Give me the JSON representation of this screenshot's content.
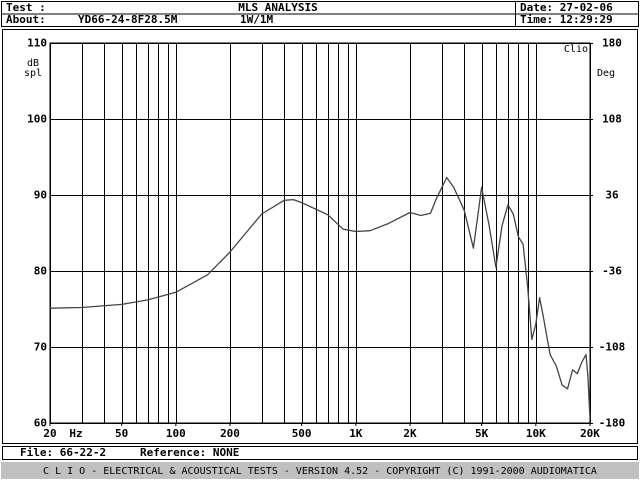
{
  "header": {
    "test_label": "Test :",
    "title": "MLS ANALYSIS",
    "date": "Date: 27-02-06",
    "about_label": "About:",
    "about": "YD66-24-8F28.5M",
    "level": "1W/1M",
    "time": "Time: 12:29:29"
  },
  "footer": {
    "file": "File: 66-22-2",
    "reference": "Reference: NONE",
    "banner": "C L I O  -  ELECTRICAL & ACOUSTICAL TESTS  -  VERSION 4.52  -  COPYRIGHT (C) 1991-2000 AUDIOMATICA"
  },
  "chart_data": {
    "type": "line",
    "color": "#444444",
    "log_x": true,
    "grid": true,
    "y_label": [
      "dB",
      "spl"
    ],
    "y2_label": "Deg",
    "corner_label": "Clio",
    "x_unit": "Hz",
    "xlim": [
      20,
      20000
    ],
    "xticks": [
      20,
      50,
      100,
      200,
      500,
      {
        "value": 1000,
        "label": "1K"
      },
      {
        "value": 2000,
        "label": "2K"
      },
      {
        "value": 5000,
        "label": "5K"
      },
      {
        "value": 10000,
        "label": "10K"
      },
      {
        "value": 20000,
        "label": "20K"
      }
    ],
    "xgrid": [
      20,
      30,
      40,
      50,
      60,
      70,
      80,
      90,
      100,
      200,
      300,
      400,
      500,
      600,
      700,
      800,
      900,
      1000,
      2000,
      3000,
      4000,
      5000,
      6000,
      7000,
      8000,
      9000,
      10000,
      20000
    ],
    "ylim": [
      60,
      110
    ],
    "yticks": [
      60,
      70,
      80,
      90,
      100,
      110
    ],
    "y2lim": [
      -180,
      180
    ],
    "y2ticks": [
      -180,
      -108,
      -36,
      36,
      108,
      180
    ],
    "x": [
      20,
      30,
      50,
      70,
      100,
      150,
      200,
      300,
      400,
      450,
      500,
      700,
      850,
      1000,
      1200,
      1500,
      2000,
      2300,
      2600,
      2800,
      3200,
      3500,
      4000,
      4500,
      5000,
      5500,
      6000,
      6500,
      7000,
      7500,
      8000,
      8500,
      9000,
      9500,
      10000,
      10500,
      11000,
      12000,
      13000,
      14000,
      15000,
      16000,
      17000,
      18000,
      19000,
      19500,
      20000
    ],
    "values": [
      75.1,
      75.2,
      75.6,
      76.2,
      77.2,
      79.5,
      82.5,
      87.5,
      89.3,
      89.4,
      89,
      87.4,
      85.5,
      85.2,
      85.3,
      86.2,
      87.7,
      87.3,
      87.6,
      89.5,
      92.3,
      91,
      88,
      83,
      91,
      86,
      80.5,
      86,
      88.7,
      87.5,
      84.5,
      83.5,
      78,
      71,
      73,
      76.5,
      74,
      69,
      67.5,
      65,
      64.5,
      67,
      66.5,
      68,
      69,
      66,
      60.5
    ]
  }
}
